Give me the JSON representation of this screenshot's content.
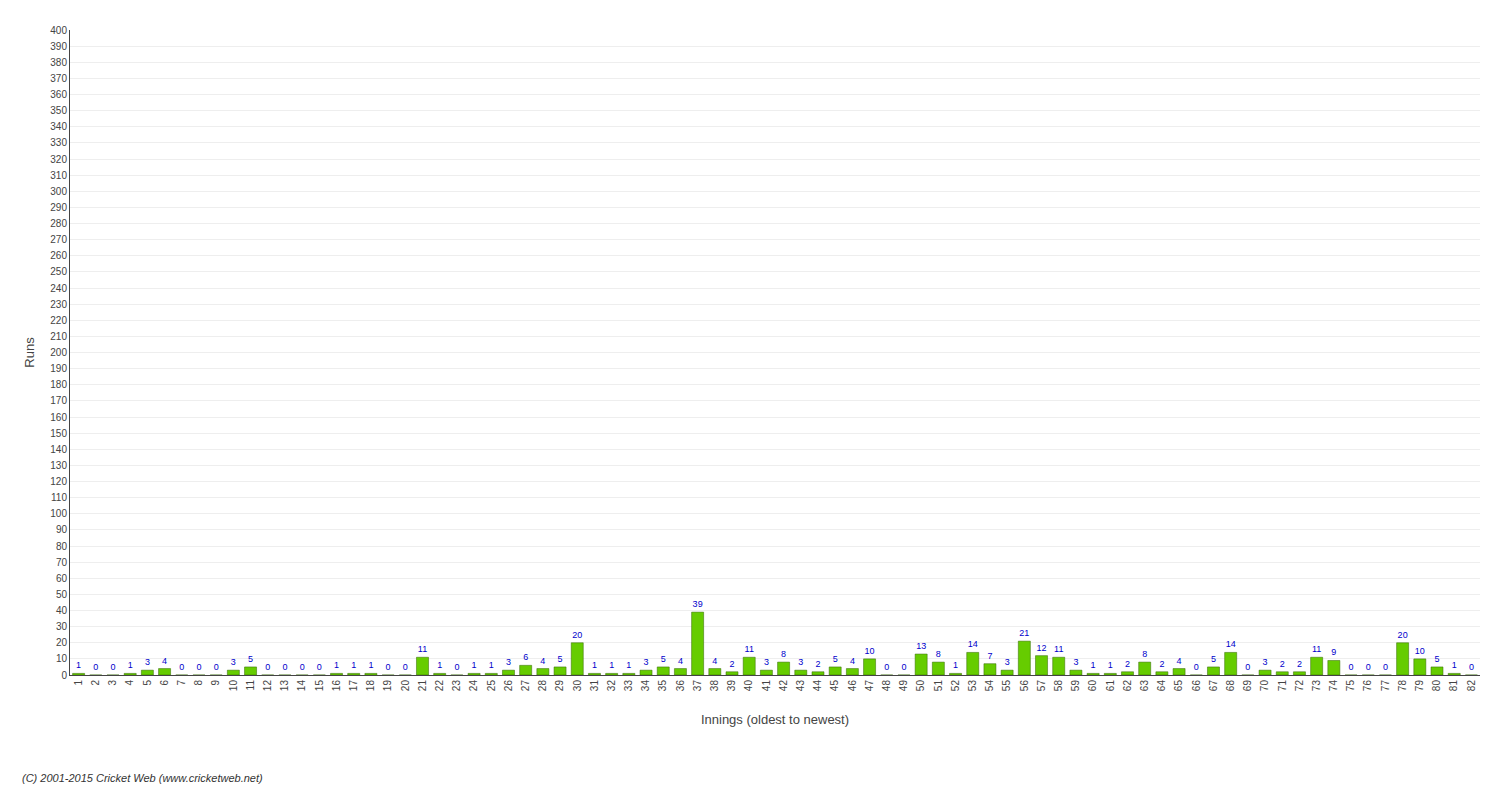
{
  "chart_data": {
    "type": "bar",
    "xlabel": "Innings (oldest to newest)",
    "ylabel": "Runs",
    "annotations": [
      "(C) 2001-2015 Cricket Web (www.cricketweb.net)"
    ],
    "categories": [
      "1",
      "2",
      "3",
      "4",
      "5",
      "6",
      "7",
      "8",
      "9",
      "10",
      "11",
      "12",
      "13",
      "14",
      "15",
      "16",
      "17",
      "18",
      "19",
      "20",
      "21",
      "22",
      "23",
      "24",
      "25",
      "26",
      "27",
      "28",
      "29",
      "30",
      "31",
      "32",
      "33",
      "34",
      "35",
      "36",
      "37",
      "38",
      "39",
      "40",
      "41",
      "42",
      "43",
      "44",
      "45",
      "46",
      "47",
      "48",
      "49",
      "50",
      "51",
      "52",
      "53",
      "54",
      "55",
      "56",
      "57",
      "58",
      "59",
      "60",
      "61",
      "62",
      "63",
      "64",
      "65",
      "66",
      "67",
      "68",
      "69",
      "70",
      "71",
      "72",
      "73",
      "74",
      "75",
      "76",
      "77",
      "78",
      "79",
      "80",
      "81",
      "82"
    ],
    "values": [
      1,
      0,
      0,
      1,
      3,
      4,
      0,
      0,
      0,
      3,
      5,
      0,
      0,
      0,
      0,
      1,
      1,
      1,
      0,
      0,
      11,
      1,
      0,
      1,
      1,
      3,
      6,
      4,
      5,
      20,
      1,
      1,
      1,
      3,
      5,
      4,
      39,
      4,
      2,
      11,
      3,
      8,
      3,
      2,
      5,
      4,
      10,
      0,
      0,
      13,
      8,
      1,
      14,
      7,
      3,
      21,
      12,
      11,
      3,
      1,
      1,
      2,
      8,
      2,
      4,
      0,
      5,
      14,
      0,
      3,
      2,
      2,
      11,
      9,
      0,
      0,
      0,
      20,
      10,
      5,
      1,
      0
    ],
    "color": "#66cc00",
    "data_labels": true,
    "ylim": [
      0,
      400
    ],
    "yticks": [
      0,
      10,
      20,
      30,
      40,
      50,
      60,
      70,
      80,
      90,
      100,
      110,
      120,
      130,
      140,
      150,
      160,
      170,
      180,
      190,
      200,
      210,
      220,
      230,
      240,
      250,
      260,
      270,
      280,
      290,
      300,
      310,
      320,
      330,
      340,
      350,
      360,
      370,
      380,
      390,
      400
    ],
    "grid": true
  }
}
